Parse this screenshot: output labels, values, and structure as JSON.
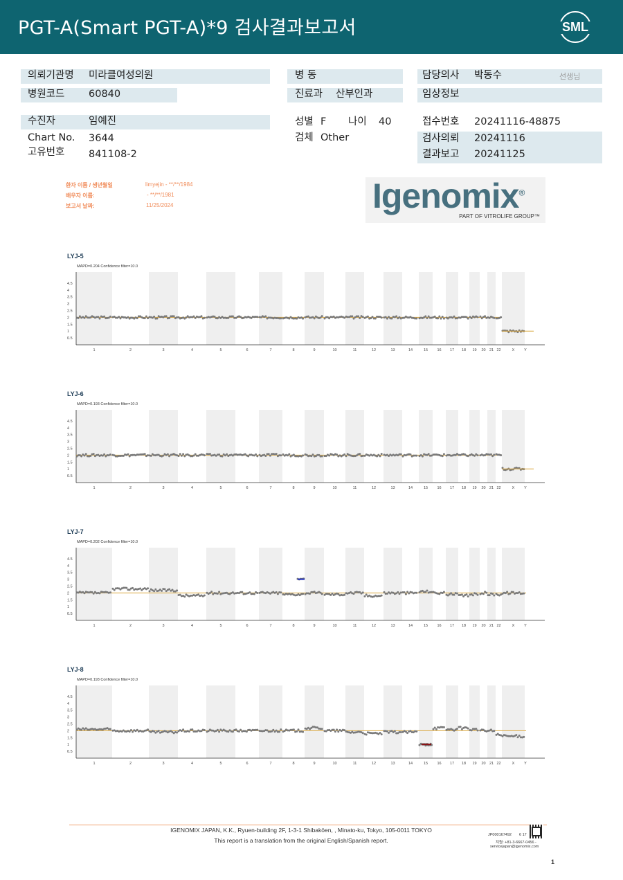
{
  "header": {
    "title": "PGT-A(Smart  PGT-A)*9 검사결과보고서",
    "logo_text": "SML",
    "bg_color": "#0e6470"
  },
  "info": {
    "institution_label": "의뢰기관명",
    "institution_value": "미라클여성의원",
    "hospital_code_label": "병원코드",
    "hospital_code_value": "60840",
    "ward_label": "병 동",
    "department_label": "진료과",
    "department_value": "산부인과",
    "doctor_label": "담당의사",
    "doctor_value": "박동수",
    "doctor_suffix": "선생님",
    "clinical_label": "임상정보",
    "patient_label": "수진자",
    "patient_value": "임예진",
    "chart_no_label": "Chart No.",
    "chart_no_value": "3644",
    "unique_no_label": "고유번호",
    "unique_no_value": "841108-2",
    "sex_label": "성별",
    "sex_value": "F",
    "age_label": "나이",
    "age_value": "40",
    "specimen_label": "검체",
    "specimen_value": "Other",
    "receipt_no_label": "접수번호",
    "receipt_no_value": "20241116-48875",
    "test_request_label": "검사의뢰",
    "test_request_value": "20241116",
    "result_report_label": "결과보고",
    "result_report_value": "20241125"
  },
  "report_meta": {
    "patient_name_label": "환자 이름 / 생년월일",
    "patient_name_value": "limyejin - **/**/1984",
    "partner_name_label": "배우자 이름:",
    "partner_name_value": "- **/**/1981",
    "report_date_label": "보고서 날짜:",
    "report_date_value": "11/25/2024"
  },
  "brand": {
    "name": "Igenomix",
    "registered": "®",
    "tagline": "PART OF VITROLIFE GROUP™",
    "color": "#47707f"
  },
  "chart_data": [
    {
      "type": "scatter",
      "title": "LYJ-5",
      "subtitle": "MAPD=0.204 Confidence filter=10.0",
      "yticks": [
        "4.5",
        "4",
        "3.5",
        "3",
        "2.5",
        "2",
        "1.5",
        "1",
        "0.5"
      ],
      "ylim": [
        0,
        5
      ],
      "xticks": [
        "1",
        "2",
        "3",
        "4",
        "5",
        "6",
        "7",
        "8",
        "9",
        "10",
        "11",
        "12",
        "13",
        "14",
        "15",
        "16",
        "17",
        "18",
        "19",
        "20",
        "21",
        "22",
        "X",
        "Y"
      ],
      "reference_line": 2,
      "series": [
        {
          "values": [
            2,
            2,
            2,
            2,
            2,
            2,
            2,
            2,
            2,
            2,
            2,
            2,
            2,
            2,
            2,
            2,
            2,
            2,
            2,
            2,
            2,
            2,
            1,
            0
          ]
        }
      ],
      "calls": []
    },
    {
      "type": "scatter",
      "title": "LYJ-6",
      "subtitle": "MAPD=0.193 Confidence filter=10.0",
      "yticks": [
        "4.5",
        "4",
        "3.5",
        "3",
        "2.5",
        "2",
        "1.5",
        "1",
        "0.5"
      ],
      "ylim": [
        0,
        5
      ],
      "xticks": [
        "1",
        "2",
        "3",
        "4",
        "5",
        "6",
        "7",
        "8",
        "9",
        "10",
        "11",
        "12",
        "13",
        "14",
        "15",
        "16",
        "17",
        "18",
        "19",
        "20",
        "21",
        "22",
        "X",
        "Y"
      ],
      "reference_line": 2,
      "series": [
        {
          "values": [
            2,
            2,
            2,
            2,
            2,
            2,
            2,
            2,
            2,
            2,
            2,
            2,
            2,
            2,
            2,
            2,
            2,
            2,
            2,
            2,
            2,
            2,
            1,
            0
          ]
        }
      ],
      "calls": []
    },
    {
      "type": "scatter",
      "title": "LYJ-7",
      "subtitle": "MAPD=0.202 Confidence filter=10.0",
      "yticks": [
        "4.5",
        "4",
        "3.5",
        "3",
        "2.5",
        "2",
        "1.5",
        "1",
        "0.5"
      ],
      "ylim": [
        0,
        5
      ],
      "xticks": [
        "1",
        "2",
        "3",
        "4",
        "5",
        "6",
        "7",
        "8",
        "9",
        "10",
        "11",
        "12",
        "13",
        "14",
        "15",
        "16",
        "17",
        "18",
        "19",
        "20",
        "21",
        "22",
        "X",
        "Y"
      ],
      "reference_line": 2,
      "series": [
        {
          "values": [
            2,
            2.3,
            2.2,
            1.8,
            2,
            2,
            2,
            1.9,
            2,
            1.9,
            2,
            1.8,
            2,
            2,
            2.1,
            2,
            1.9,
            1.8,
            1.9,
            2,
            1.9,
            1.9,
            2,
            2.1
          ]
        }
      ],
      "calls": [
        {
          "chromosome": "8",
          "segment": "end",
          "value": 3,
          "color": "#1f2fbf"
        }
      ]
    },
    {
      "type": "scatter",
      "title": "LYJ-8",
      "subtitle": "MAPD=0.193 Confidence filter=10.0",
      "yticks": [
        "4.5",
        "4",
        "3.5",
        "3",
        "2.5",
        "2",
        "1.5",
        "1",
        "0.5"
      ],
      "ylim": [
        0,
        5
      ],
      "xticks": [
        "1",
        "2",
        "3",
        "4",
        "5",
        "6",
        "7",
        "8",
        "9",
        "10",
        "11",
        "12",
        "13",
        "14",
        "15",
        "16",
        "17",
        "18",
        "19",
        "20",
        "21",
        "22",
        "X",
        "Y"
      ],
      "reference_line": 2,
      "series": [
        {
          "values": [
            2.1,
            2,
            1.9,
            2,
            2,
            2,
            2,
            2,
            2.2,
            2,
            1.9,
            1.8,
            1.9,
            1.9,
            1,
            2.2,
            2.1,
            2.2,
            2.1,
            2,
            2,
            1.7,
            1.6,
            1.7
          ]
        }
      ],
      "calls": [
        {
          "chromosome": "15",
          "segment": "partial",
          "value": 1,
          "color": "#8c0f12"
        }
      ]
    }
  ],
  "footer": {
    "company": "IGENOMIX JAPAN, K.K., Ryuen-building 2F, 1-3-1 Shibakōen, , Minato-ku, Tokyo, 105-0011 TOKYO",
    "translation_note": "This report is a translation from the original English/Spanish report.",
    "doc_code": "JP000167492",
    "page": "6  17",
    "tel": "지원: +81-3-6667-0456 -",
    "email": "servicejapan@igenomix.com",
    "page_mark": "1"
  }
}
